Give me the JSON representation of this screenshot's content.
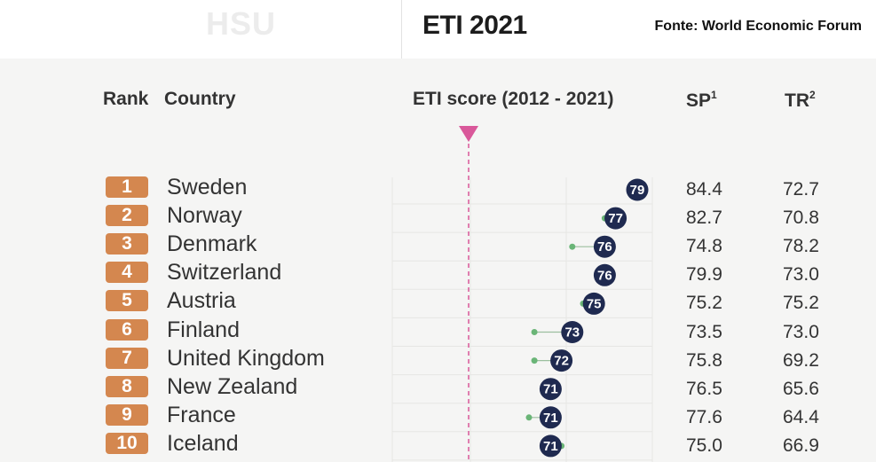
{
  "header": {
    "title": "ETI 2021",
    "ghost_text": "HSU",
    "source": "Fonte: World Economic Forum"
  },
  "columns": {
    "rank": "Rank",
    "country": "Country",
    "score": "ETI score (2012 - 2021)",
    "sp": "SP",
    "sp_sup": "1",
    "tr": "TR",
    "tr_sup": "2"
  },
  "colors": {
    "badge": "#d4874f",
    "score_dot": "#1f2a50",
    "start_dot": "#6ab577",
    "marker": "#d9589a"
  },
  "chart_data": {
    "type": "dot",
    "title": "ETI 2021",
    "columns": [
      "Rank",
      "Country",
      "ETI score (2012 - 2021)",
      "SP",
      "TR"
    ],
    "rows": [
      {
        "rank": "1",
        "country": "Sweden",
        "score_2012": 78.5,
        "score_2021": 79,
        "sp": "84.4",
        "tr": "72.7"
      },
      {
        "rank": "2",
        "country": "Norway",
        "score_2012": 76,
        "score_2021": 77,
        "sp": "82.7",
        "tr": "70.8"
      },
      {
        "rank": "3",
        "country": "Denmark",
        "score_2012": 73,
        "score_2021": 76,
        "sp": "74.8",
        "tr": "78.2"
      },
      {
        "rank": "4",
        "country": "Switzerland",
        "score_2012": 75.5,
        "score_2021": 76,
        "sp": "79.9",
        "tr": "73.0"
      },
      {
        "rank": "5",
        "country": "Austria",
        "score_2012": 74,
        "score_2021": 75,
        "sp": "75.2",
        "tr": "75.2"
      },
      {
        "rank": "6",
        "country": "Finland",
        "score_2012": 69.5,
        "score_2021": 73,
        "sp": "73.5",
        "tr": "73.0"
      },
      {
        "rank": "7",
        "country": "United Kingdom",
        "score_2012": 69.5,
        "score_2021": 72,
        "sp": "75.8",
        "tr": "69.2"
      },
      {
        "rank": "8",
        "country": "New Zealand",
        "score_2012": 71.5,
        "score_2021": 71,
        "sp": "76.5",
        "tr": "65.6"
      },
      {
        "rank": "9",
        "country": "France",
        "score_2012": 69,
        "score_2021": 71,
        "sp": "77.6",
        "tr": "64.4"
      },
      {
        "rank": "10",
        "country": "Iceland",
        "score_2012": 72,
        "score_2021": 71,
        "sp": "75.0",
        "tr": "66.9"
      }
    ]
  }
}
